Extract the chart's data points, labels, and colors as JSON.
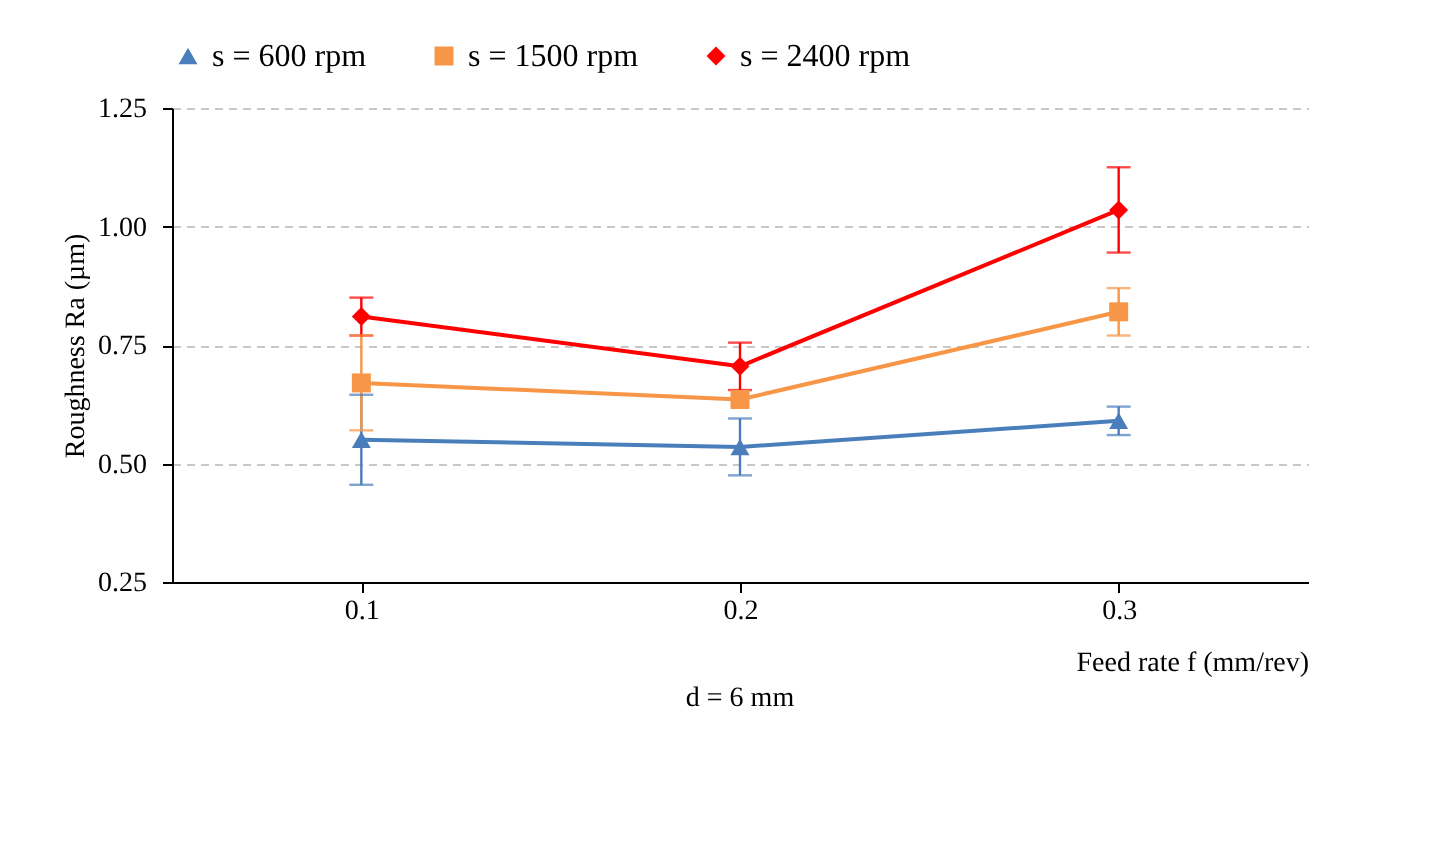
{
  "chart_data": {
    "type": "line",
    "xlabel": "Feed rate f (mm/rev)",
    "ylabel": "Roughness Ra (µm)",
    "x": [
      0.1,
      0.2,
      0.3
    ],
    "xlim": [
      0.05,
      0.35
    ],
    "xticks": [
      0.1,
      0.2,
      0.3
    ],
    "ylim": [
      0.25,
      1.25
    ],
    "yticks": [
      0.25,
      {
        "value": 0.5,
        "label": "0.50"
      },
      0.75,
      {
        "value": 1.0,
        "label": "1.00"
      },
      1.25
    ],
    "grid": "y",
    "legend": "top",
    "line_style": "solid",
    "annotations": [
      "d = 6 mm"
    ],
    "series": [
      {
        "name": "s = 600 rpm",
        "color": "#4a7ebb",
        "marker": "triangle",
        "values": [
          0.55,
          0.535,
          0.59
        ],
        "errors": [
          0.095,
          0.06,
          0.03
        ]
      },
      {
        "name": "s = 1500 rpm",
        "color": "#f79646",
        "marker": "square",
        "values": [
          0.67,
          0.635,
          0.82
        ],
        "errors": [
          0.1,
          null,
          0.05
        ]
      },
      {
        "name": "s = 2400 rpm",
        "color": "#ff0000",
        "marker": "diamond",
        "values": [
          0.81,
          0.705,
          1.035
        ],
        "errors": [
          0.04,
          0.05,
          0.09
        ]
      }
    ]
  }
}
